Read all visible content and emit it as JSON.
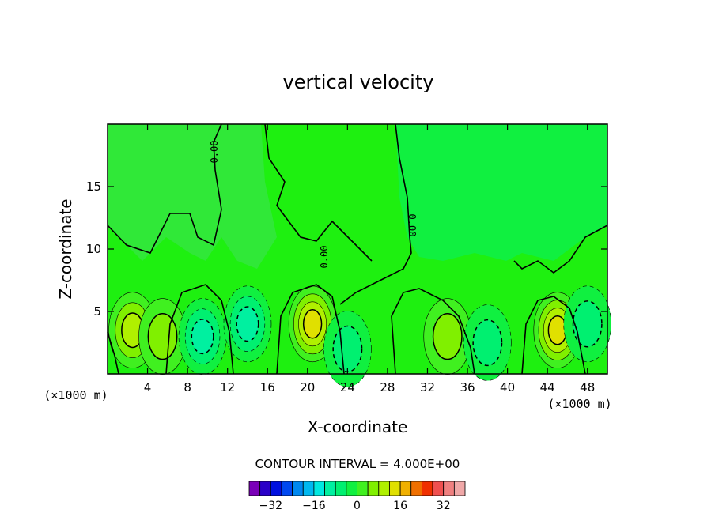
{
  "chart_data": {
    "type": "heatmap",
    "title": "vertical velocity",
    "xlabel": "X-coordinate",
    "ylabel": "Z-coordinate",
    "x_unit_left": "(×1000 m)",
    "x_unit_right": "(×1000 m)",
    "xlim": [
      0,
      50
    ],
    "ylim": [
      0,
      20
    ],
    "x_ticks": [
      "4",
      "8",
      "12",
      "16",
      "20",
      "24",
      "28",
      "32",
      "36",
      "40",
      "44",
      "48"
    ],
    "y_ticks": [
      "5",
      "10",
      "15"
    ],
    "contour_interval_label": "CONTOUR INTERVAL = 4.000E+00",
    "zero_contour_label": "0.00",
    "colorbar": {
      "levels": [
        -36,
        -32,
        -28,
        -24,
        -20,
        -16,
        -12,
        -8,
        -4,
        0,
        4,
        8,
        12,
        16,
        20,
        24,
        28,
        32,
        36
      ],
      "tick_labels": [
        "-32",
        "-16",
        "0",
        "16",
        "32"
      ],
      "colors": [
        "#7a00b8",
        "#2a00c8",
        "#0010e0",
        "#0048f0",
        "#0088f0",
        "#00b8f0",
        "#00e8e0",
        "#00f0a0",
        "#00f070",
        "#10f040",
        "#40f020",
        "#80f000",
        "#b0f000",
        "#e0e000",
        "#f0b000",
        "#f07000",
        "#f03000",
        "#f05050",
        "#f08080",
        "#f0a8a8"
      ]
    },
    "features": [
      {
        "x": 2.5,
        "z": 3.5,
        "value": 10
      },
      {
        "x": 5.5,
        "z": 3,
        "value": 6
      },
      {
        "x": 9.5,
        "z": 3,
        "value": -10
      },
      {
        "x": 14,
        "z": 4,
        "value": -8
      },
      {
        "x": 20.5,
        "z": 4,
        "value": 14
      },
      {
        "x": 24,
        "z": 2,
        "value": -6
      },
      {
        "x": 34,
        "z": 3,
        "value": 6
      },
      {
        "x": 38,
        "z": 2.5,
        "value": -6
      },
      {
        "x": 45,
        "z": 3.5,
        "value": 12
      },
      {
        "x": 48,
        "z": 4,
        "value": -6
      }
    ]
  }
}
